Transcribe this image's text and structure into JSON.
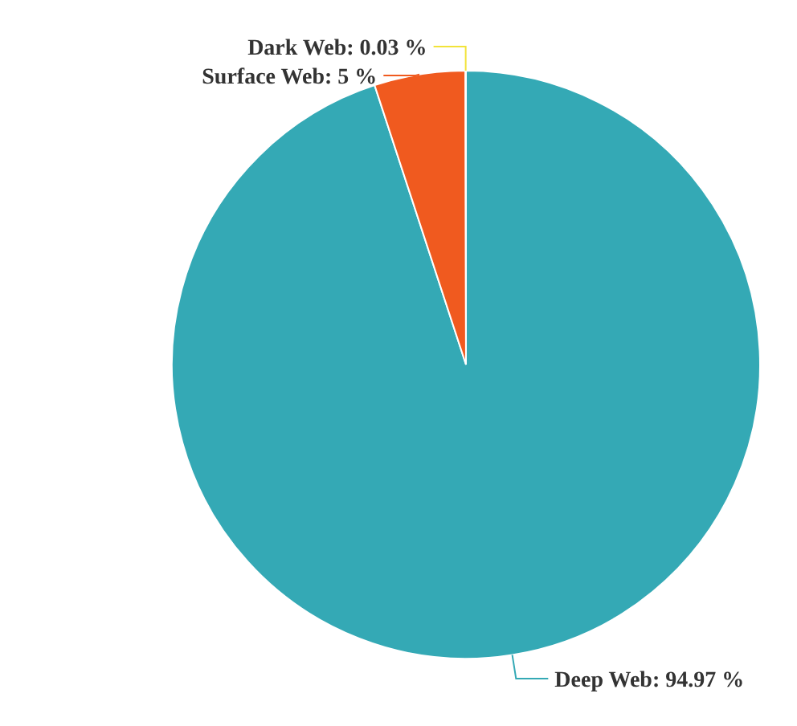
{
  "chart_data": {
    "type": "pie",
    "categories": [
      "Deep Web",
      "Surface Web",
      "Dark Web"
    ],
    "values": [
      94.97,
      5,
      0.03
    ],
    "value_labels": [
      "94.97 %",
      "5 %",
      "0.03 %"
    ],
    "colors": [
      "#34a9b5",
      "#f05a1f",
      "#f2e33a"
    ]
  }
}
